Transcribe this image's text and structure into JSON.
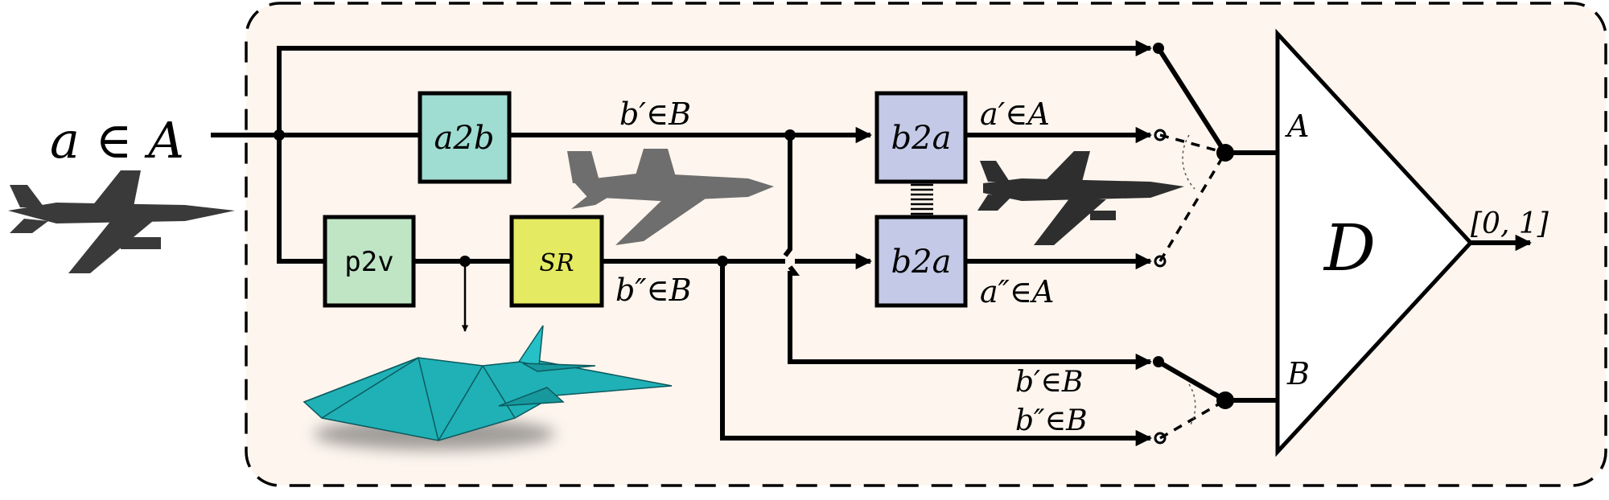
{
  "input": {
    "label": "a ∈ A"
  },
  "blocks": {
    "a2b": {
      "label": "a2b",
      "color": "#9fdcd2"
    },
    "p2v": {
      "label": "p2v",
      "color": "#bfe5c5"
    },
    "sr": {
      "label": "SR",
      "color": "#e4ea62"
    },
    "b2a_top": {
      "label": "b2a",
      "color": "#c3c9e6"
    },
    "b2a_bottom": {
      "label": "b2a",
      "color": "#c3c9e6"
    }
  },
  "signals": {
    "b_prime": "b′∈B",
    "b_dprime": "b″∈B",
    "a_prime": "a′∈A",
    "a_dprime": "a″∈A",
    "b_prime_lower": "b′∈B",
    "b_dprime_lower": "b″∈B"
  },
  "discriminator": {
    "label": "D",
    "input_a": "A",
    "input_b": "B",
    "output": "[0, 1]"
  },
  "colors": {
    "background": "#fdf5ee",
    "mesh": "#1fb1b6",
    "airplane": "#3a3a3a"
  }
}
